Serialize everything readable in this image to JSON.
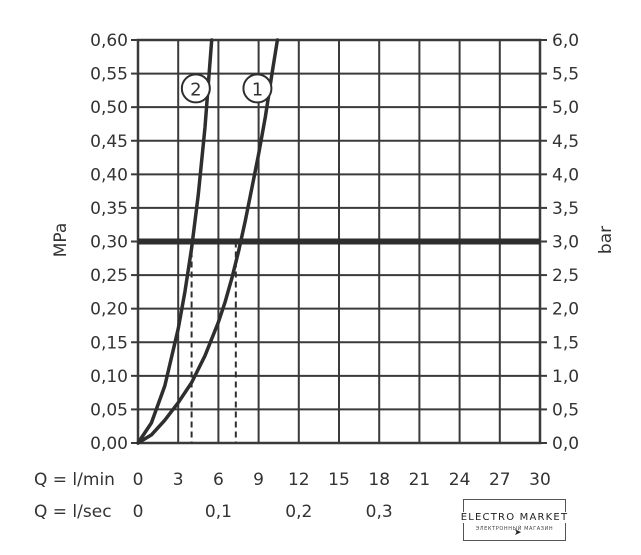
{
  "chart_data": {
    "type": "line",
    "title": "",
    "ylabel_left": "MPa",
    "ylabel_right": "bar",
    "xlabel_rows": [
      {
        "label": "Q = l/min",
        "ticks": [
          "0",
          "3",
          "6",
          "9",
          "12",
          "15",
          "18",
          "21",
          "24",
          "27",
          "30"
        ]
      },
      {
        "label": "Q = l/sec",
        "ticks": [
          "0",
          "0,1",
          "0,2",
          "0,3"
        ]
      }
    ],
    "x_range": [
      0,
      30
    ],
    "y_range": [
      0,
      0.6
    ],
    "y_ticks_left": [
      "0,00",
      "0,05",
      "0,10",
      "0,15",
      "0,20",
      "0,25",
      "0,30",
      "0,35",
      "0,40",
      "0,45",
      "0,50",
      "0,55",
      "0,60"
    ],
    "y_ticks_right": [
      "0,0",
      "0,5",
      "1,0",
      "1,5",
      "2,0",
      "2,5",
      "3,0",
      "3,5",
      "4,0",
      "4,5",
      "5,0",
      "5,5",
      "6,0"
    ],
    "grid": true,
    "reference_line": {
      "y": 0.3
    },
    "series": [
      {
        "name": "1",
        "x": [
          0,
          1,
          2,
          3,
          4,
          5,
          6,
          6.5,
          7,
          7.5,
          8,
          8.5,
          9,
          9.5,
          10,
          10.4
        ],
        "y": [
          0,
          0.012,
          0.034,
          0.06,
          0.09,
          0.13,
          0.18,
          0.21,
          0.245,
          0.285,
          0.33,
          0.38,
          0.43,
          0.485,
          0.55,
          0.6
        ],
        "drop_x": 7.3
      },
      {
        "name": "2",
        "x": [
          0,
          1,
          2,
          3,
          3.5,
          4,
          4.5,
          5,
          5.5
        ],
        "y": [
          0,
          0.03,
          0.085,
          0.17,
          0.225,
          0.29,
          0.37,
          0.47,
          0.6
        ],
        "drop_x": 4.0
      }
    ]
  },
  "watermark": {
    "main": "ELECTRO MARKET",
    "sub": "ЭЛЕКТРОННЫЙ МАГАЗИН"
  }
}
